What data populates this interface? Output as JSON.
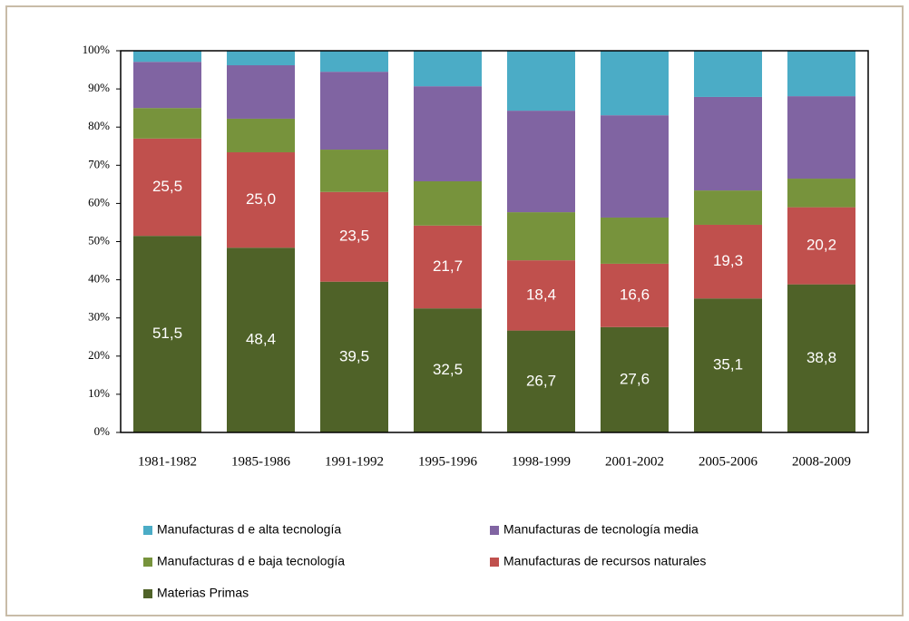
{
  "chart_data": {
    "type": "stacked-bar",
    "categories": [
      "1981-1982",
      "1985-1986",
      "1991-1992",
      "1995-1996",
      "1998-1999",
      "2001-2002",
      "2005-2006",
      "2008-2009"
    ],
    "series": [
      {
        "name": "Materias Primas",
        "color": "#4f6228",
        "values": [
          51.5,
          48.4,
          39.5,
          32.5,
          26.7,
          27.6,
          35.1,
          38.8
        ],
        "value_labels": [
          "51,5",
          "48,4",
          "39,5",
          "32,5",
          "26,7",
          "27,6",
          "35,1",
          "38,8"
        ]
      },
      {
        "name": "Manufacturas de recursos naturales",
        "color": "#c0504d",
        "values": [
          25.5,
          25.0,
          23.5,
          21.7,
          18.4,
          16.6,
          19.3,
          20.2
        ],
        "value_labels": [
          "25,5",
          "25,0",
          "23,5",
          "21,7",
          "18,4",
          "16,6",
          "19,3",
          "20,2"
        ]
      },
      {
        "name": "Manufacturas d e baja tecnología",
        "color": "#77933c",
        "values": [
          8.0,
          8.8,
          11.1,
          11.6,
          12.6,
          12.1,
          9.0,
          7.5
        ]
      },
      {
        "name": "Manufacturas de tecnología media",
        "color": "#8064a2",
        "values": [
          12.1,
          14.0,
          20.4,
          24.9,
          26.6,
          26.8,
          24.5,
          21.6
        ]
      },
      {
        "name": "Manufacturas d e alta tecnología",
        "color": "#4bacc6",
        "values": [
          2.9,
          3.8,
          5.5,
          9.3,
          15.7,
          16.9,
          12.1,
          11.9
        ]
      }
    ],
    "ylim": [
      0,
      100
    ],
    "yticks": [
      {
        "value": 0,
        "label": "0%"
      },
      {
        "value": 10,
        "label": "10%"
      },
      {
        "value": 20,
        "label": "20%"
      },
      {
        "value": 30,
        "label": "30%"
      },
      {
        "value": 40,
        "label": "40%"
      },
      {
        "value": 50,
        "label": "50%"
      },
      {
        "value": 60,
        "label": "60%"
      },
      {
        "value": 70,
        "label": "70%"
      },
      {
        "value": 80,
        "label": "80%"
      },
      {
        "value": 90,
        "label": "90%"
      },
      {
        "value": 100,
        "label": "100%"
      }
    ],
    "legend_order": [
      4,
      3,
      2,
      1,
      0
    ]
  }
}
